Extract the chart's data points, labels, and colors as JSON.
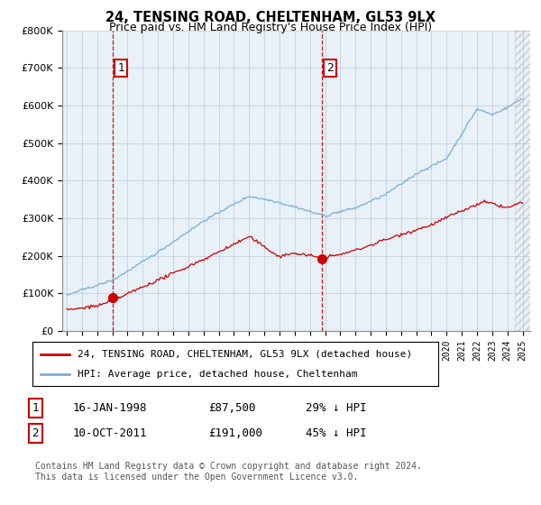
{
  "title": "24, TENSING ROAD, CHELTENHAM, GL53 9LX",
  "subtitle": "Price paid vs. HM Land Registry's House Price Index (HPI)",
  "legend_line1": "24, TENSING ROAD, CHELTENHAM, GL53 9LX (detached house)",
  "legend_line2": "HPI: Average price, detached house, Cheltenham",
  "sale1_label": "1",
  "sale1_date": "16-JAN-1998",
  "sale1_price": "£87,500",
  "sale1_hpi": "29% ↓ HPI",
  "sale2_label": "2",
  "sale2_date": "10-OCT-2011",
  "sale2_price": "£191,000",
  "sale2_hpi": "45% ↓ HPI",
  "footnote": "Contains HM Land Registry data © Crown copyright and database right 2024.\nThis data is licensed under the Open Government Licence v3.0.",
  "sale1_x": 1998.04,
  "sale1_y": 87500,
  "sale2_x": 2011.78,
  "sale2_y": 191000,
  "property_color": "#cc0000",
  "hpi_color": "#7aaed6",
  "vline_color": "#cc0000",
  "plot_bg_color": "#e8f0f8",
  "background_color": "#ffffff",
  "grid_color": "#c0ccd8",
  "ylim": [
    0,
    800000
  ],
  "xlim": [
    1994.7,
    2025.5
  ]
}
